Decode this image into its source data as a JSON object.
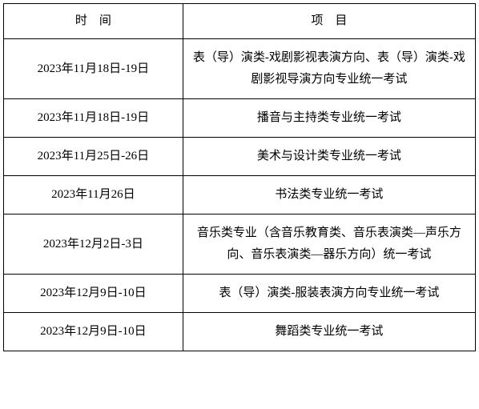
{
  "table": {
    "headers": {
      "time": "时　间",
      "item": "项　目"
    },
    "rows": [
      {
        "time": "2023年11月18日-19日",
        "item": "表（导）演类-戏剧影视表演方向、表（导）演类-戏剧影视导演方向专业统一考试"
      },
      {
        "time": "2023年11月18日-19日",
        "item": "播音与主持类专业统一考试"
      },
      {
        "time": "2023年11月25日-26日",
        "item": "美术与设计类专业统一考试"
      },
      {
        "time": "2023年11月26日",
        "item": "书法类专业统一考试"
      },
      {
        "time": "2023年12月2日-3日",
        "item": "音乐类专业（含音乐教育类、音乐表演类—声乐方向、音乐表演类—器乐方向）统一考试"
      },
      {
        "time": "2023年12月9日-10日",
        "item": "表（导）演类-服装表演方向专业统一考试"
      },
      {
        "time": "2023年12月9日-10日",
        "item": "舞蹈类专业统一考试"
      }
    ],
    "border_color": "#000000",
    "background_color": "#ffffff",
    "font_size": 15,
    "text_color": "#000000"
  }
}
